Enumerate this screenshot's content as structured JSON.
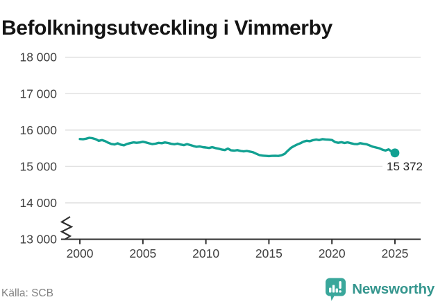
{
  "chart_data": {
    "type": "line",
    "title": "Befolkningsutveckling i Vimmerby",
    "source": "Källa: SCB",
    "xlabel": "",
    "ylabel": "",
    "grid": "horizontal",
    "legend": "none",
    "y_axis_break": true,
    "ylim": [
      13000,
      18000
    ],
    "xlim": [
      1998.84,
      2027.04
    ],
    "yticks": [
      {
        "value": 13000,
        "label": "13 000"
      },
      {
        "value": 14000,
        "label": "14 000"
      },
      {
        "value": 15000,
        "label": "15 000"
      },
      {
        "value": 16000,
        "label": "16 000"
      },
      {
        "value": 17000,
        "label": "17 000"
      },
      {
        "value": 18000,
        "label": "18 000"
      }
    ],
    "xticks": [
      {
        "value": 2000,
        "label": "2000"
      },
      {
        "value": 2005,
        "label": "2005"
      },
      {
        "value": 2010,
        "label": "2010"
      },
      {
        "value": 2015,
        "label": "2015"
      },
      {
        "value": 2020,
        "label": "2020"
      },
      {
        "value": 2025,
        "label": "2025"
      }
    ],
    "x_start": 2000,
    "x_step": 0.25,
    "values": [
      15755,
      15748,
      15762,
      15788,
      15775,
      15750,
      15705,
      15725,
      15698,
      15652,
      15618,
      15604,
      15636,
      15598,
      15582,
      15620,
      15640,
      15662,
      15650,
      15660,
      15678,
      15660,
      15635,
      15615,
      15625,
      15648,
      15638,
      15660,
      15645,
      15622,
      15610,
      15628,
      15602,
      15585,
      15615,
      15590,
      15562,
      15540,
      15552,
      15530,
      15520,
      15508,
      15530,
      15505,
      15488,
      15465,
      15450,
      15490,
      15442,
      15435,
      15448,
      15425,
      15415,
      15425,
      15408,
      15390,
      15350,
      15312,
      15298,
      15290,
      15285,
      15290,
      15294,
      15288,
      15308,
      15345,
      15432,
      15512,
      15560,
      15605,
      15638,
      15682,
      15705,
      15695,
      15722,
      15740,
      15725,
      15752,
      15742,
      15735,
      15726,
      15672,
      15650,
      15668,
      15645,
      15662,
      15638,
      15618,
      15612,
      15638,
      15622,
      15610,
      15576,
      15542,
      15520,
      15500,
      15462,
      15438,
      15470,
      15405,
      15372
    ],
    "last_value": 15372,
    "last_value_label": "15 372",
    "colors": {
      "line": "#12a192",
      "grid": "#e2e2e2",
      "axis": "#2f2f2f",
      "tick_label": "#3f3f3f",
      "title": "#141414",
      "last_label": "#222222",
      "source": "#828282"
    }
  },
  "branding": {
    "wordmark": "Newsworthy",
    "icon": "bar-chart-speech-bubble",
    "colors": {
      "icon": "#3aa79b",
      "icon_glyph": "#ffffff",
      "wordmark": "#35968e"
    }
  }
}
